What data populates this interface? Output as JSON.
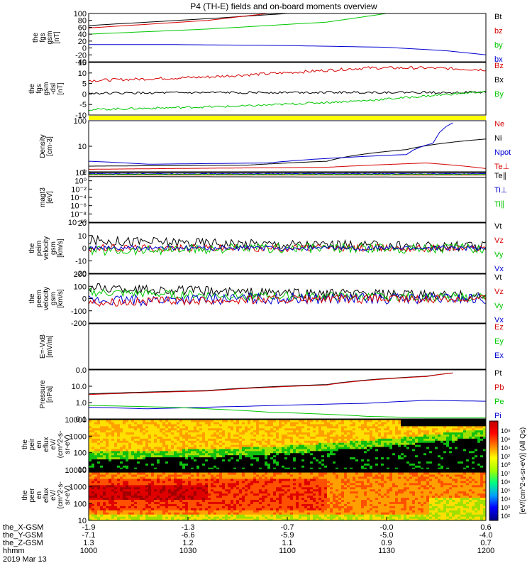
{
  "title": "P4 (TH-E) fields and on-board moments overview",
  "colors": {
    "black": "#000000",
    "red": "#d60000",
    "green": "#00c800",
    "blue": "#0000d2",
    "yellow": "#ffff00"
  },
  "chart_data": [
    {
      "type": "line",
      "id": "fgs_gsm",
      "ylabel_lines": [
        "the",
        "fgs",
        "gsm",
        "[nT]"
      ],
      "yticks": [
        "100",
        "80",
        "60",
        "40",
        "20",
        "0",
        "-20",
        "-40"
      ],
      "ylim": [
        -40,
        100
      ],
      "legend": [
        {
          "name": "Bt",
          "color": "black"
        },
        {
          "name": "bz",
          "color": "red"
        },
        {
          "name": "by",
          "color": "green"
        },
        {
          "name": "bx",
          "color": "blue"
        }
      ],
      "series": [
        {
          "name": "Bt",
          "color": "black",
          "t": [
            0,
            0.3,
            0.5
          ],
          "y": [
            65,
            85,
            100
          ]
        },
        {
          "name": "bz",
          "color": "red",
          "t": [
            0,
            0.3,
            0.45
          ],
          "y": [
            58,
            80,
            100
          ]
        },
        {
          "name": "by",
          "color": "green",
          "t": [
            0,
            0.3,
            0.6,
            0.75
          ],
          "y": [
            40,
            55,
            75,
            100
          ]
        },
        {
          "name": "bx",
          "color": "blue",
          "t": [
            0,
            0.2,
            0.5,
            0.75,
            0.9,
            1.0
          ],
          "y": [
            10,
            10,
            7,
            2,
            -8,
            -20
          ]
        }
      ]
    },
    {
      "type": "line",
      "id": "fgs_gse",
      "ylabel_lines": [
        "the",
        "fgs",
        "gsm",
        "-dsl",
        "[nT]"
      ],
      "yticks": [
        "15",
        "10",
        "5",
        "0",
        "-5",
        "-10"
      ],
      "ylim": [
        -14,
        15
      ],
      "legend": [
        {
          "name": "Bz",
          "color": "red"
        },
        {
          "name": "Bx",
          "color": "black"
        },
        {
          "name": "By",
          "color": "green"
        }
      ],
      "series": [
        {
          "name": "Bz",
          "color": "red",
          "t": [
            0,
            0.3,
            0.55,
            0.7,
            0.85,
            1.0
          ],
          "y": [
            5,
            7,
            10,
            12,
            12,
            11
          ],
          "noise": 0.8
        },
        {
          "name": "Bx",
          "color": "black",
          "t": [
            0,
            0.5,
            1.0
          ],
          "y": [
            -2,
            -1.5,
            -1.5
          ],
          "noise": 0.6
        },
        {
          "name": "By",
          "color": "green",
          "t": [
            0,
            0.4,
            0.7,
            1.0
          ],
          "y": [
            -11,
            -9,
            -6,
            -1
          ],
          "noise": 0.6
        }
      ]
    },
    {
      "type": "line",
      "id": "density",
      "ylabel_lines": [
        "Density",
        "[cm-3]"
      ],
      "yticks": [
        "100",
        "10",
        "1"
      ],
      "ylim": [
        1,
        200
      ],
      "scale": "log",
      "legend": [
        {
          "name": "Ne",
          "color": "red"
        },
        {
          "name": "Ni",
          "color": "black"
        },
        {
          "name": "Npot",
          "color": "blue"
        },
        {
          "name": "Te⊥",
          "color": "red"
        }
      ],
      "series": [
        {
          "name": "Ne",
          "color": "red",
          "t": [
            0,
            0.6,
            0.85,
            1.0
          ],
          "y": [
            1.3,
            1.6,
            2.5,
            1.4
          ],
          "noise": 0.05
        },
        {
          "name": "Ni",
          "color": "black",
          "t": [
            0,
            0.4,
            0.6,
            0.8,
            0.95,
            1.0
          ],
          "y": [
            1.8,
            2.0,
            3,
            10,
            25,
            30
          ],
          "noise": 0.05
        },
        {
          "name": "Npot",
          "color": "blue",
          "t": [
            0,
            0.15,
            0.45,
            0.8,
            0.87,
            0.93
          ],
          "y": [
            3,
            2.2,
            2.5,
            6,
            20,
            200
          ]
        }
      ]
    },
    {
      "type": "line",
      "id": "magt3",
      "ylabel_lines": [
        "magt3",
        "[eV]"
      ],
      "yticks": [
        "10²",
        "10⁰",
        "10⁻²",
        "10⁻⁴",
        "10⁻⁶",
        "10⁻⁸",
        "10⁻¹⁰"
      ],
      "ylim": [
        -12,
        4
      ],
      "scale": "log-exp",
      "legend": [
        {
          "name": "Te∥",
          "color": "black"
        },
        {
          "name": "Ti⊥",
          "color": "blue"
        },
        {
          "name": "Ti∥",
          "color": "green"
        }
      ],
      "series": [
        {
          "name": "Te⊥",
          "color": "red",
          "t": [
            0,
            1.0
          ],
          "y": [
            3.2,
            3.2
          ]
        },
        {
          "name": "Te∥",
          "color": "black",
          "t": [
            0,
            1.0
          ],
          "y": [
            2.7,
            2.5
          ]
        },
        {
          "name": "Ti⊥",
          "color": "blue",
          "t": [
            0,
            1.0
          ],
          "y": [
            3.6,
            3.6
          ],
          "noise": 0.1
        },
        {
          "name": "Ti∥",
          "color": "green",
          "t": [
            0,
            1.0
          ],
          "y": [
            3.4,
            3.4
          ],
          "noise": 0.1
        }
      ]
    },
    {
      "type": "line",
      "id": "peim",
      "ylabel_lines": [
        "the",
        "peim",
        "velocity",
        "gsm",
        "[km/s]"
      ],
      "yticks": [
        "20",
        "10",
        "0",
        "-10",
        "-20"
      ],
      "ylim": [
        -20,
        20
      ],
      "legend": [
        {
          "name": "Vt",
          "color": "black"
        },
        {
          "name": "Vz",
          "color": "red"
        },
        {
          "name": "Vy",
          "color": "green"
        },
        {
          "name": "Vx",
          "color": "blue"
        }
      ],
      "series": [
        {
          "name": "Vt",
          "color": "black",
          "t": [
            0,
            0.5,
            1.0
          ],
          "y": [
            6,
            3,
            1
          ],
          "noise": 4
        },
        {
          "name": "Vz",
          "color": "red",
          "t": [
            0,
            0.5,
            1.0
          ],
          "y": [
            0,
            0,
            0
          ],
          "noise": 3
        },
        {
          "name": "Vy",
          "color": "green",
          "t": [
            0,
            0.5,
            1.0
          ],
          "y": [
            -2,
            0,
            0
          ],
          "noise": 4
        },
        {
          "name": "Vx",
          "color": "blue",
          "t": [
            0,
            0.5,
            1.0
          ],
          "y": [
            0,
            0,
            0
          ],
          "noise": 2
        }
      ]
    },
    {
      "type": "line",
      "id": "peem",
      "ylabel_lines": [
        "the",
        "peem",
        "velocity",
        "gsm",
        "[km/s]"
      ],
      "yticks": [
        "200",
        "100",
        "0",
        "-100",
        "-200"
      ],
      "ylim": [
        -200,
        200
      ],
      "legend": [
        {
          "name": "Vt",
          "color": "black"
        },
        {
          "name": "Vz",
          "color": "red"
        },
        {
          "name": "Vy",
          "color": "green"
        },
        {
          "name": "Vx",
          "color": "blue"
        }
      ],
      "series": [
        {
          "name": "Vt",
          "color": "black",
          "t": [
            0,
            0.4,
            1.0
          ],
          "y": [
            90,
            50,
            20
          ],
          "noise": 40
        },
        {
          "name": "Vy",
          "color": "green",
          "t": [
            0,
            0.4,
            1.0
          ],
          "y": [
            50,
            20,
            10
          ],
          "noise": 35
        },
        {
          "name": "Vx",
          "color": "blue",
          "t": [
            0,
            0.4,
            1.0
          ],
          "y": [
            -20,
            0,
            0
          ],
          "noise": 45
        },
        {
          "name": "Vz",
          "color": "red",
          "t": [
            0,
            0.4,
            1.0
          ],
          "y": [
            -30,
            -10,
            0
          ],
          "noise": 35
        }
      ]
    },
    {
      "type": "line",
      "id": "efield",
      "ylabel_lines": [
        "E=-VxB",
        "[mV/m]"
      ],
      "yticks": [],
      "ylim": [
        0,
        1
      ],
      "legend": [
        {
          "name": "Ez",
          "color": "red"
        },
        {
          "name": "Ey",
          "color": "green"
        },
        {
          "name": "Ex",
          "color": "blue"
        }
      ],
      "series": []
    },
    {
      "type": "line",
      "id": "pressure",
      "ylabel_lines": [
        "Pressure",
        "[nPa]"
      ],
      "yticks": [
        "0.0",
        "10.0",
        "1.0",
        "0.1"
      ],
      "ylim": [
        0.07,
        60
      ],
      "scale": "log",
      "legend": [
        {
          "name": "Pt",
          "color": "black"
        },
        {
          "name": "Pb",
          "color": "red"
        },
        {
          "name": "Pe",
          "color": "green"
        },
        {
          "name": "Pi",
          "color": "blue"
        }
      ],
      "series": [
        {
          "name": "Pt",
          "color": "black",
          "t": [
            0,
            0.3,
            0.6,
            0.85,
            0.92
          ],
          "y": [
            2.2,
            3.5,
            8,
            25,
            40
          ]
        },
        {
          "name": "Pb",
          "color": "red",
          "t": [
            0,
            0.3,
            0.6,
            0.85,
            0.92
          ],
          "y": [
            2.0,
            3.3,
            7.5,
            24,
            40
          ]
        },
        {
          "name": "Pi",
          "color": "blue",
          "t": [
            0,
            0.15,
            0.4,
            0.7,
            0.85,
            1.0
          ],
          "y": [
            0.35,
            0.28,
            0.4,
            0.6,
            0.9,
            0.8
          ]
        },
        {
          "name": "Pe",
          "color": "green",
          "t": [
            0,
            0.2,
            0.45,
            0.7,
            0.85,
            1.0
          ],
          "y": [
            0.45,
            0.35,
            0.18,
            0.1,
            0.08,
            0.08
          ]
        }
      ]
    },
    {
      "type": "heatmap",
      "id": "peir",
      "ylabel_lines": [
        "the",
        "peir",
        "en",
        "eflux",
        "eV/",
        "(cm^2-s-",
        "sr-eV)"
      ],
      "yticks": [
        "10000",
        "1000",
        "100",
        "10"
      ]
    },
    {
      "type": "heatmap",
      "id": "peer",
      "ylabel_lines": [
        "the",
        "peer",
        "en",
        "eflux",
        "eV/",
        "(cm^2-s-",
        "sr-eV)"
      ],
      "yticks": [
        "10000",
        "1000",
        "100",
        "10"
      ]
    }
  ],
  "flag_bar": {
    "color": "yellow"
  },
  "colorbar": {
    "ticks": [
      "10⁸",
      "10⁶",
      "10⁴",
      "10²",
      "10⁰",
      "10⁷",
      "10⁶",
      "10⁵",
      "10⁴",
      "10³",
      "10²"
    ],
    "label": "[eV/(cm^2-s-sr-eV)] (All Qs)"
  },
  "xaxis": {
    "rows": [
      {
        "label": "the_X-GSM",
        "values": [
          "-1.9",
          "-1.3",
          "-0.7",
          "-0.0",
          "0.6"
        ]
      },
      {
        "label": "the_Y-GSM",
        "values": [
          "-7.1",
          "-6.6",
          "-5.9",
          "-5.0",
          "-4.0"
        ]
      },
      {
        "label": "the_Z-GSM",
        "values": [
          "1.3",
          "1.2",
          "1.1",
          "0.9",
          "0.7"
        ]
      },
      {
        "label": "hhmm",
        "values": [
          "1000",
          "1030",
          "1100",
          "1130",
          "1200"
        ]
      }
    ],
    "date": "2019 Mar 13"
  }
}
